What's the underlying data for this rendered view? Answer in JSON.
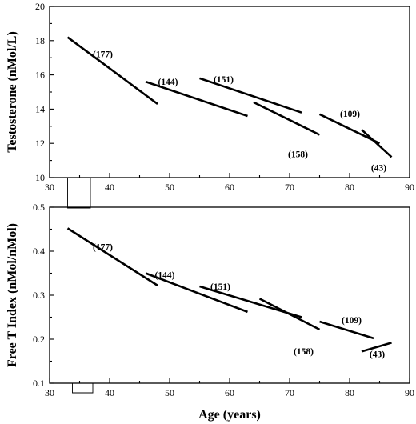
{
  "chart_data": [
    {
      "type": "line",
      "title": "",
      "xlabel": "",
      "ylabel": "Testosterone (nMol/L)",
      "xlim": [
        30,
        90
      ],
      "ylim": [
        10,
        20
      ],
      "xticks": [
        "30",
        "40",
        "50",
        "60",
        "70",
        "80",
        "90"
      ],
      "yticks": [
        "10",
        "12",
        "14",
        "16",
        "18",
        "20"
      ],
      "grid": false,
      "series": [
        {
          "label": "(177)",
          "x": [
            33,
            48
          ],
          "y": [
            18.2,
            14.3
          ]
        },
        {
          "label": "(144)",
          "x": [
            46,
            63
          ],
          "y": [
            15.6,
            13.6
          ]
        },
        {
          "label": "(151)",
          "x": [
            55,
            72
          ],
          "y": [
            15.8,
            13.8
          ]
        },
        {
          "label": "(158)",
          "x": [
            64,
            75
          ],
          "y": [
            14.4,
            12.5
          ]
        },
        {
          "label": "(109)",
          "x": [
            75,
            85
          ],
          "y": [
            13.7,
            12.0
          ]
        },
        {
          "label": "(43)",
          "x": [
            82,
            87
          ],
          "y": [
            12.8,
            11.2
          ]
        }
      ]
    },
    {
      "type": "line",
      "title": "",
      "xlabel": "Age (years)",
      "ylabel": "Free T Index (nMol/nMol)",
      "xlim": [
        30,
        90
      ],
      "ylim": [
        0.1,
        0.5
      ],
      "xticks": [
        "30",
        "40",
        "50",
        "60",
        "70",
        "80",
        "90"
      ],
      "yticks": [
        "0.1",
        "0.2",
        "0.3",
        "0.4",
        "0.5"
      ],
      "grid": false,
      "series": [
        {
          "label": "(177)",
          "x": [
            33,
            48
          ],
          "y": [
            0.452,
            0.322
          ]
        },
        {
          "label": "(144)",
          "x": [
            46,
            63
          ],
          "y": [
            0.35,
            0.262
          ]
        },
        {
          "label": "(151)",
          "x": [
            55,
            72
          ],
          "y": [
            0.32,
            0.25
          ]
        },
        {
          "label": "(158)",
          "x": [
            65,
            75
          ],
          "y": [
            0.292,
            0.222
          ]
        },
        {
          "label": "(109)",
          "x": [
            75,
            84
          ],
          "y": [
            0.24,
            0.202
          ]
        },
        {
          "label": "(43)",
          "x": [
            82,
            87
          ],
          "y": [
            0.172,
            0.192
          ]
        }
      ]
    }
  ]
}
